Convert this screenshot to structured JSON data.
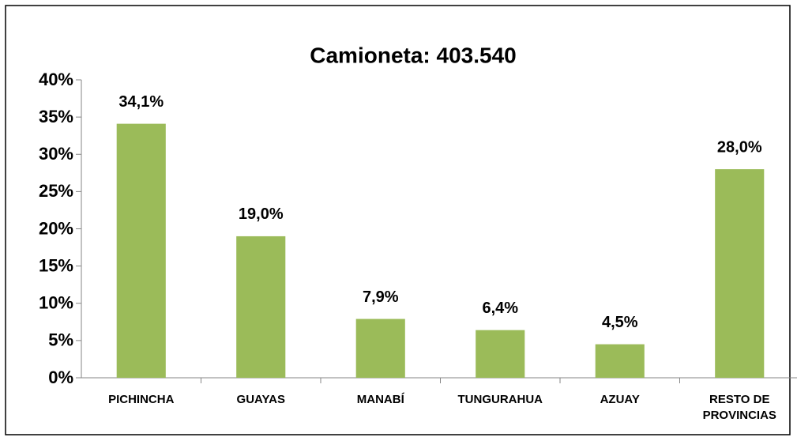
{
  "chart_data": {
    "type": "bar",
    "title": "Camioneta: 403.540",
    "categories": [
      "PICHINCHA",
      "GUAYAS",
      "MANABÍ",
      "TUNGURAHUA",
      "AZUAY",
      "RESTO DE PROVINCIAS"
    ],
    "values": [
      34.1,
      19.0,
      7.9,
      6.4,
      4.5,
      28.0
    ],
    "value_labels": [
      "34,1%",
      "19,0%",
      "7,9%",
      "6,4%",
      "4,5%",
      "28,0%"
    ],
    "color": "#9bbb59",
    "ylim": [
      0,
      40
    ],
    "yticks": [
      {
        "value": 0,
        "label": "0%"
      },
      {
        "value": 5,
        "label": "5%"
      },
      {
        "value": 10,
        "label": "10%"
      },
      {
        "value": 15,
        "label": "15%"
      },
      {
        "value": 20,
        "label": "20%"
      },
      {
        "value": 25,
        "label": "25%"
      },
      {
        "value": 30,
        "label": "30%"
      },
      {
        "value": 35,
        "label": "35%"
      },
      {
        "value": 40,
        "label": "40%"
      }
    ],
    "grid": false
  }
}
